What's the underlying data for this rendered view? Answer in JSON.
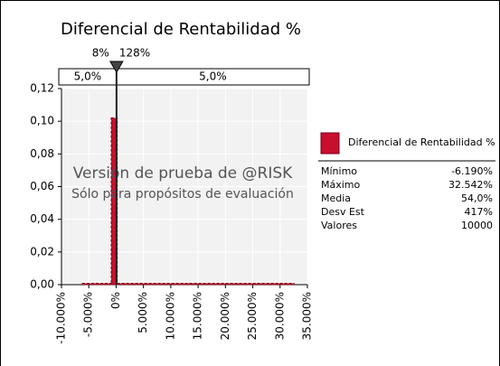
{
  "chart_data": {
    "type": "histogram",
    "title": "Diferencial de Rentabilidad %",
    "bins": [
      -6190,
      -900,
      200,
      32542
    ],
    "values": [
      0.0008,
      0.102,
      0.0008
    ],
    "color": "#c8102e",
    "xlim": [
      -10000,
      35000
    ],
    "xticks": [
      {
        "value": -10000,
        "label": "-10.000%"
      },
      {
        "value": -5000,
        "label": "-5.000%"
      },
      {
        "value": 0,
        "label": "0%"
      },
      {
        "value": 5000,
        "label": "5.000%"
      },
      {
        "value": 10000,
        "label": "10.000%"
      },
      {
        "value": 15000,
        "label": "15.000%"
      },
      {
        "value": 20000,
        "label": "20.000%"
      },
      {
        "value": 25000,
        "label": "25.000%"
      },
      {
        "value": 30000,
        "label": "30.000%"
      },
      {
        "value": 35000,
        "label": "35.000%"
      }
    ],
    "ylim": [
      0,
      0.12
    ],
    "yticks": [
      {
        "value": 0,
        "label": "0,00"
      },
      {
        "value": 0.02,
        "label": "0,02"
      },
      {
        "value": 0.04,
        "label": "0,04"
      },
      {
        "value": 0.06,
        "label": "0,06"
      },
      {
        "value": 0.08,
        "label": "0,08"
      },
      {
        "value": 0.1,
        "label": "0,10"
      },
      {
        "value": 0.12,
        "label": "0,12"
      }
    ],
    "grid": true,
    "delimiters": {
      "values": [
        8,
        128
      ],
      "value_labels": [
        "8%",
        "128%"
      ]
    },
    "bands": {
      "values": [
        5,
        5
      ],
      "value_labels": [
        "5,0%",
        "5,0%"
      ]
    },
    "watermark": [
      "Versión de prueba de @RISK",
      "Sólo para propósitos de evaluación"
    ],
    "legend": {
      "name": "Diferencial de Rentabilidad %"
    },
    "stats": [
      {
        "label": "Mínimo",
        "value": "-6.190%"
      },
      {
        "label": "Máximo",
        "value": "32.542%"
      },
      {
        "label": "Media",
        "value": "54,0%"
      },
      {
        "label": "Desv Est",
        "value": "417%"
      },
      {
        "label": "Valores",
        "value": "10000"
      }
    ]
  }
}
